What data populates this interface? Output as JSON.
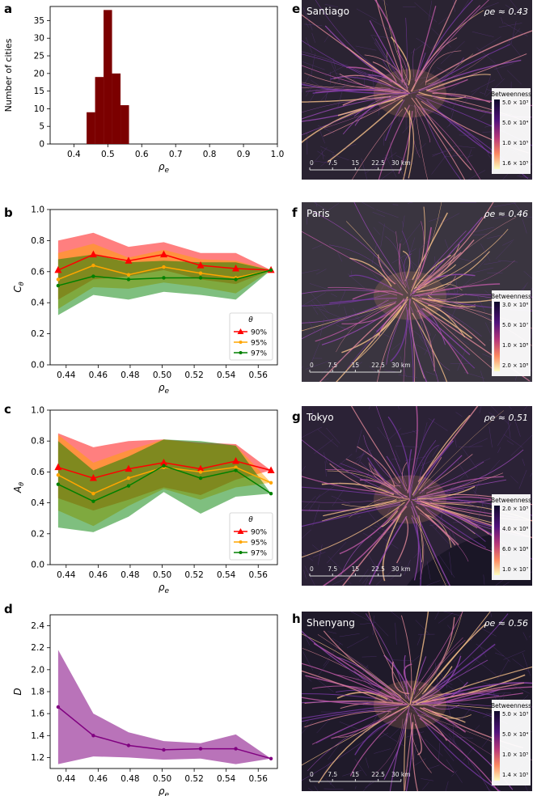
{
  "panel_letters": [
    "a",
    "b",
    "c",
    "d",
    "e",
    "f",
    "g",
    "h"
  ],
  "chart_data": [
    {
      "id": "a",
      "type": "bar",
      "xlabel": "ρe",
      "ylabel": "Number of cities",
      "xlim": [
        0.33,
        1.0
      ],
      "ylim": [
        0,
        39
      ],
      "xticks": [
        "0.4",
        "0.5",
        "0.6",
        "0.7",
        "0.8",
        "0.9",
        "1.0"
      ],
      "yticks": [
        "0",
        "5",
        "10",
        "15",
        "20",
        "25",
        "30",
        "35"
      ],
      "bin_edges": [
        0.4375,
        0.4625,
        0.4875,
        0.5125,
        0.5375,
        0.5625
      ],
      "values": [
        9,
        19,
        38,
        20,
        11
      ],
      "color": "#7b0000"
    },
    {
      "id": "b",
      "type": "line",
      "xlabel": "ρe",
      "ylabel": "Cθ",
      "xlim": [
        0.43,
        0.572
      ],
      "ylim": [
        0,
        1.0
      ],
      "xticks": [
        "0.44",
        "0.46",
        "0.48",
        "0.50",
        "0.52",
        "0.54",
        "0.56"
      ],
      "yticks": [
        "0.0",
        "0.2",
        "0.4",
        "0.6",
        "0.8",
        "1.0"
      ],
      "x": [
        0.435,
        0.457,
        0.479,
        0.501,
        0.524,
        0.546,
        0.568
      ],
      "legend_title": "θ",
      "series": [
        {
          "name": "90%",
          "color": "#ff0000",
          "marker": "triangle",
          "values": [
            0.61,
            0.71,
            0.67,
            0.71,
            0.64,
            0.62,
            0.61
          ],
          "lower": [
            0.42,
            0.55,
            0.57,
            0.61,
            0.55,
            0.52,
            0.61
          ],
          "upper": [
            0.8,
            0.85,
            0.76,
            0.79,
            0.72,
            0.72,
            0.61
          ]
        },
        {
          "name": "95%",
          "color": "#ffa500",
          "marker": "circle",
          "values": [
            0.55,
            0.64,
            0.58,
            0.63,
            0.59,
            0.56,
            0.61
          ],
          "lower": [
            0.36,
            0.5,
            0.49,
            0.53,
            0.5,
            0.46,
            0.61
          ],
          "upper": [
            0.72,
            0.78,
            0.69,
            0.74,
            0.68,
            0.67,
            0.61
          ]
        },
        {
          "name": "97%",
          "color": "#008000",
          "marker": "circle",
          "values": [
            0.51,
            0.57,
            0.55,
            0.56,
            0.56,
            0.55,
            0.61
          ],
          "lower": [
            0.32,
            0.45,
            0.42,
            0.47,
            0.45,
            0.42,
            0.61
          ],
          "upper": [
            0.68,
            0.71,
            0.66,
            0.67,
            0.66,
            0.66,
            0.61
          ]
        }
      ]
    },
    {
      "id": "c",
      "type": "line",
      "xlabel": "ρe",
      "ylabel": "Aθ",
      "xlim": [
        0.43,
        0.572
      ],
      "ylim": [
        0,
        1.0
      ],
      "xticks": [
        "0.44",
        "0.46",
        "0.48",
        "0.50",
        "0.52",
        "0.54",
        "0.56"
      ],
      "yticks": [
        "0.0",
        "0.2",
        "0.4",
        "0.6",
        "0.8",
        "1.0"
      ],
      "x": [
        0.435,
        0.457,
        0.479,
        0.501,
        0.524,
        0.546,
        0.568
      ],
      "legend_title": "θ",
      "series": [
        {
          "name": "90%",
          "color": "#ff0000",
          "marker": "triangle",
          "values": [
            0.63,
            0.56,
            0.62,
            0.66,
            0.62,
            0.67,
            0.61
          ],
          "lower": [
            0.43,
            0.35,
            0.42,
            0.5,
            0.45,
            0.55,
            0.61
          ],
          "upper": [
            0.85,
            0.76,
            0.8,
            0.81,
            0.79,
            0.78,
            0.61
          ]
        },
        {
          "name": "95%",
          "color": "#ffa500",
          "marker": "circle",
          "values": [
            0.58,
            0.46,
            0.56,
            0.63,
            0.6,
            0.63,
            0.53
          ],
          "lower": [
            0.35,
            0.25,
            0.38,
            0.49,
            0.42,
            0.5,
            0.53
          ],
          "upper": [
            0.84,
            0.66,
            0.74,
            0.81,
            0.78,
            0.77,
            0.53
          ]
        },
        {
          "name": "97%",
          "color": "#008000",
          "marker": "circle",
          "values": [
            0.52,
            0.41,
            0.51,
            0.64,
            0.56,
            0.61,
            0.46
          ],
          "lower": [
            0.24,
            0.21,
            0.31,
            0.47,
            0.33,
            0.44,
            0.46
          ],
          "upper": [
            0.8,
            0.61,
            0.7,
            0.81,
            0.8,
            0.77,
            0.46
          ]
        }
      ]
    },
    {
      "id": "d",
      "type": "line",
      "xlabel": "ρe",
      "ylabel": "D",
      "xlim": [
        0.43,
        0.572
      ],
      "ylim": [
        1.1,
        2.5
      ],
      "xticks": [
        "0.44",
        "0.46",
        "0.48",
        "0.50",
        "0.52",
        "0.54",
        "0.56"
      ],
      "yticks": [
        "1.2",
        "1.4",
        "1.6",
        "1.8",
        "2.0",
        "2.2",
        "2.4"
      ],
      "x": [
        0.435,
        0.457,
        0.479,
        0.501,
        0.524,
        0.546,
        0.568
      ],
      "series": [
        {
          "name": "D",
          "color": "#800080",
          "marker": "circle",
          "values": [
            1.66,
            1.4,
            1.31,
            1.27,
            1.28,
            1.28,
            1.19
          ],
          "lower": [
            1.14,
            1.21,
            1.2,
            1.18,
            1.19,
            1.14,
            1.19
          ],
          "upper": [
            2.18,
            1.6,
            1.43,
            1.35,
            1.33,
            1.41,
            1.19
          ]
        }
      ]
    }
  ],
  "maps": [
    {
      "id": "e",
      "city": "Santiago",
      "rho_label": "ρe ≈ 0.43",
      "legend_title": "Betweenness",
      "legend_ticks": [
        "5.0 × 10³",
        "5.0 × 10⁴",
        "1.0 × 10⁵",
        "1.6 × 10⁵"
      ],
      "scale_ticks": [
        "0",
        "7.5",
        "15",
        "22.5",
        "30 km"
      ],
      "bg": "#2a2332"
    },
    {
      "id": "f",
      "city": "Paris",
      "rho_label": "ρe ≈ 0.46",
      "legend_title": "Betweenness",
      "legend_ticks": [
        "3.0 × 10⁶",
        "5.0 × 10⁷",
        "1.0 × 10⁸",
        "2.0 × 10⁸"
      ],
      "scale_ticks": [
        "0",
        "7.5",
        "15",
        "22.5",
        "30 km"
      ],
      "bg": "#3a3540"
    },
    {
      "id": "g",
      "city": "Tokyo",
      "rho_label": "ρe ≈ 0.51",
      "legend_title": "Betweenness",
      "legend_ticks": [
        "2.0 × 10⁵",
        "4.0 × 10⁶",
        "6.0 × 10⁶",
        "1.0 × 10⁷"
      ],
      "scale_ticks": [
        "0",
        "7.5",
        "15",
        "22.5",
        "30 km"
      ],
      "bg": "#2b2236"
    },
    {
      "id": "h",
      "city": "Shenyang",
      "rho_label": "ρe ≈ 0.56",
      "legend_title": "Betweenness",
      "legend_ticks": [
        "5.0 × 10³",
        "5.0 × 10⁴",
        "1.0 × 10⁵",
        "1.4 × 10⁵"
      ],
      "scale_ticks": [
        "0",
        "7.5",
        "15",
        "22.5",
        "30 km"
      ],
      "bg": "#1f1a2a"
    }
  ]
}
